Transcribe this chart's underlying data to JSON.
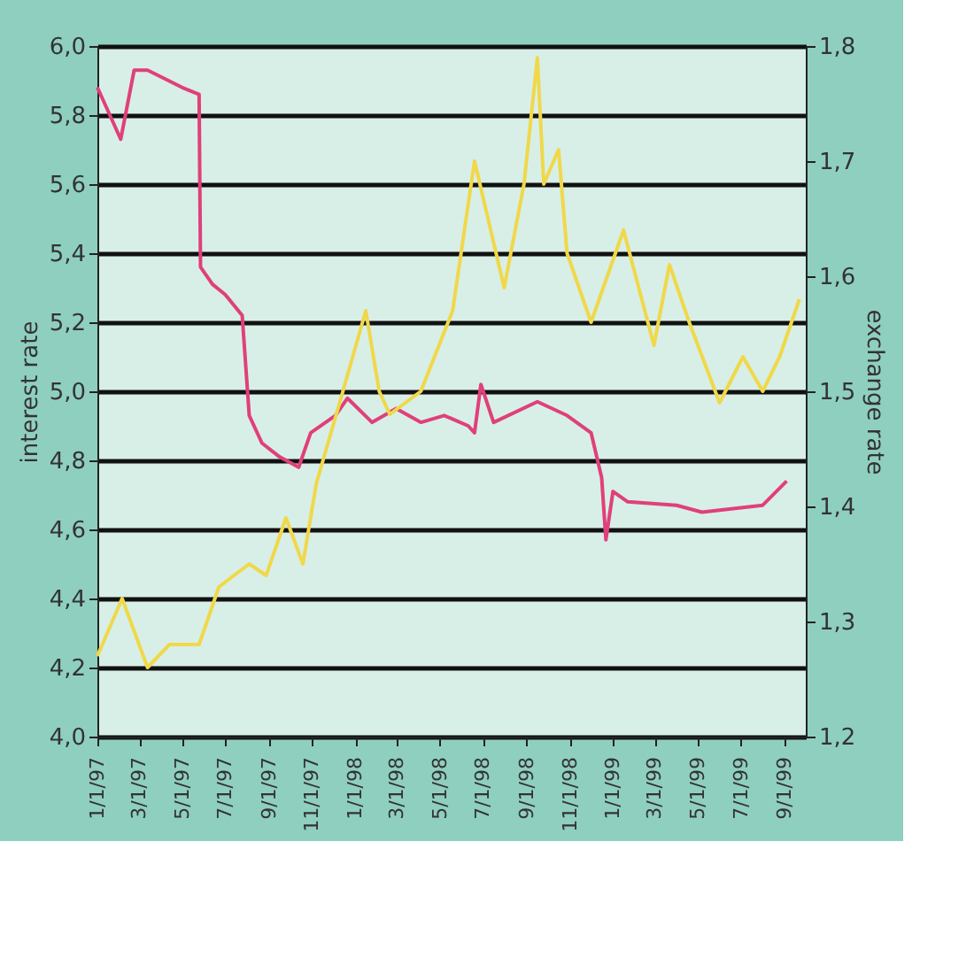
{
  "chart_data": {
    "type": "line",
    "ylabel": "interest rate",
    "y2label": "exchange rate",
    "grid": "y",
    "line_style": "solid",
    "xlim": [
      "1997-01-01",
      "1999-10-01"
    ],
    "xticks": [
      {
        "value": "1997-01-01",
        "label": "1/1/97"
      },
      {
        "value": "1997-03-01",
        "label": "3/1/97"
      },
      {
        "value": "1997-05-01",
        "label": "5/1/97"
      },
      {
        "value": "1997-07-01",
        "label": "7/1/97"
      },
      {
        "value": "1997-09-01",
        "label": "9/1/97"
      },
      {
        "value": "1997-11-01",
        "label": "11/1/97"
      },
      {
        "value": "1998-01-01",
        "label": "1/1/98"
      },
      {
        "value": "1998-03-01",
        "label": "3/1/98"
      },
      {
        "value": "1998-05-01",
        "label": "5/1/98"
      },
      {
        "value": "1998-07-01",
        "label": "7/1/98"
      },
      {
        "value": "1998-09-01",
        "label": "9/1/98"
      },
      {
        "value": "1998-11-01",
        "label": "11/1/98"
      },
      {
        "value": "1999-01-01",
        "label": "1/1/99"
      },
      {
        "value": "1999-03-01",
        "label": "3/1/99"
      },
      {
        "value": "1999-05-01",
        "label": "5/1/99"
      },
      {
        "value": "1999-07-01",
        "label": "7/1/99"
      },
      {
        "value": "1999-09-01",
        "label": "9/1/99"
      }
    ],
    "ylim": [
      4.0,
      6.0
    ],
    "yticks": [
      {
        "value": 4.0,
        "label": "4,0"
      },
      {
        "value": 4.2,
        "label": "4,2"
      },
      {
        "value": 4.4,
        "label": "4,4"
      },
      {
        "value": 4.6,
        "label": "4,6"
      },
      {
        "value": 4.8,
        "label": "4,8"
      },
      {
        "value": 5.0,
        "label": "5,0"
      },
      {
        "value": 5.2,
        "label": "5,2"
      },
      {
        "value": 5.4,
        "label": "5,4"
      },
      {
        "value": 5.6,
        "label": "5,6"
      },
      {
        "value": 5.8,
        "label": "5,8"
      },
      {
        "value": 6.0,
        "label": "6,0"
      }
    ],
    "y2lim": [
      1.2,
      1.8
    ],
    "y2ticks": [
      {
        "value": 1.2,
        "label": "1,2"
      },
      {
        "value": 1.3,
        "label": "1,3"
      },
      {
        "value": 1.4,
        "label": "1,4"
      },
      {
        "value": 1.5,
        "label": "1,5"
      },
      {
        "value": 1.6,
        "label": "1,6"
      },
      {
        "value": 1.7,
        "label": "1,7"
      },
      {
        "value": 1.8,
        "label": "1,8"
      }
    ],
    "series": [
      {
        "color": "#e0407a",
        "axis": "y",
        "x": [
          "1997-01-01",
          "1997-02-03",
          "1997-02-22",
          "1997-03-13",
          "1997-05-01",
          "1997-05-25",
          "1997-05-27",
          "1997-06-13",
          "1997-07-01",
          "1997-07-25",
          "1997-08-04",
          "1997-08-22",
          "1997-09-16",
          "1997-10-13",
          "1997-10-30",
          "1997-12-04",
          "1997-12-21",
          "1998-01-25",
          "1998-02-28",
          "1998-04-04",
          "1998-05-07",
          "1998-06-10",
          "1998-06-19",
          "1998-06-28",
          "1998-07-16",
          "1998-09-16",
          "1998-10-28",
          "1998-12-01",
          "1998-12-16",
          "1998-12-22",
          "1999-01-01",
          "1999-01-22",
          "1999-04-01",
          "1999-05-07",
          "1999-08-01",
          "1999-09-04"
        ],
        "values": [
          5.88,
          5.73,
          5.93,
          5.93,
          5.88,
          5.86,
          5.36,
          5.31,
          5.28,
          5.22,
          4.93,
          4.85,
          4.81,
          4.78,
          4.88,
          4.93,
          4.98,
          4.91,
          4.95,
          4.91,
          4.93,
          4.9,
          4.88,
          5.02,
          4.91,
          4.97,
          4.93,
          4.88,
          4.75,
          4.57,
          4.71,
          4.68,
          4.67,
          4.65,
          4.67,
          4.74
        ]
      },
      {
        "color": "#f0d84a",
        "axis": "y2",
        "x": [
          "1997-01-01",
          "1997-02-05",
          "1997-03-13",
          "1997-04-13",
          "1997-05-25",
          "1997-06-22",
          "1997-08-04",
          "1997-08-28",
          "1997-09-25",
          "1997-10-19",
          "1997-11-07",
          "1997-12-10",
          "1998-01-16",
          "1998-02-04",
          "1998-02-19",
          "1998-04-04",
          "1998-05-19",
          "1998-06-19",
          "1998-07-31",
          "1998-08-28",
          "1998-09-16",
          "1998-09-25",
          "1998-10-16",
          "1998-10-28",
          "1998-12-01",
          "1999-01-16",
          "1999-02-28",
          "1999-03-22",
          "1999-04-19",
          "1999-06-01",
          "1999-07-04",
          "1999-08-01",
          "1999-08-25",
          "1999-09-22"
        ],
        "values": [
          1.27,
          1.32,
          1.26,
          1.28,
          1.28,
          1.33,
          1.35,
          1.34,
          1.39,
          1.35,
          1.42,
          1.49,
          1.57,
          1.5,
          1.48,
          1.5,
          1.57,
          1.7,
          1.59,
          1.68,
          1.79,
          1.68,
          1.71,
          1.62,
          1.56,
          1.64,
          1.54,
          1.61,
          1.56,
          1.49,
          1.53,
          1.5,
          1.53,
          1.58
        ]
      }
    ]
  }
}
